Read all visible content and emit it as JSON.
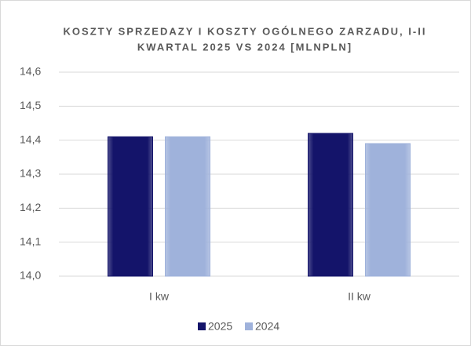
{
  "chart_data": {
    "type": "bar",
    "title": [
      "KOSZTY SPRZEDAZY I KOSZTY OGÓLNEGO ZARZADU, I-II",
      "KWARTAL 2025 VS 2024 [MLNPLN]"
    ],
    "categories": [
      "I kw",
      "II kw"
    ],
    "series": [
      {
        "name": "2025",
        "color": "#14146a",
        "values": [
          14.41,
          14.42
        ]
      },
      {
        "name": "2024",
        "color": "#9fb2db",
        "values": [
          14.41,
          14.39
        ]
      }
    ],
    "ylim": [
      14.0,
      14.6
    ],
    "yticks": [
      {
        "value": 14.0,
        "label": "14,0"
      },
      {
        "value": 14.1,
        "label": "14,1"
      },
      {
        "value": 14.2,
        "label": "14,2"
      },
      {
        "value": 14.3,
        "label": "14,3"
      },
      {
        "value": 14.4,
        "label": "14,4"
      },
      {
        "value": 14.5,
        "label": "14,5"
      },
      {
        "value": 14.6,
        "label": "14,6"
      }
    ],
    "grid": true,
    "legend": "bottom"
  }
}
